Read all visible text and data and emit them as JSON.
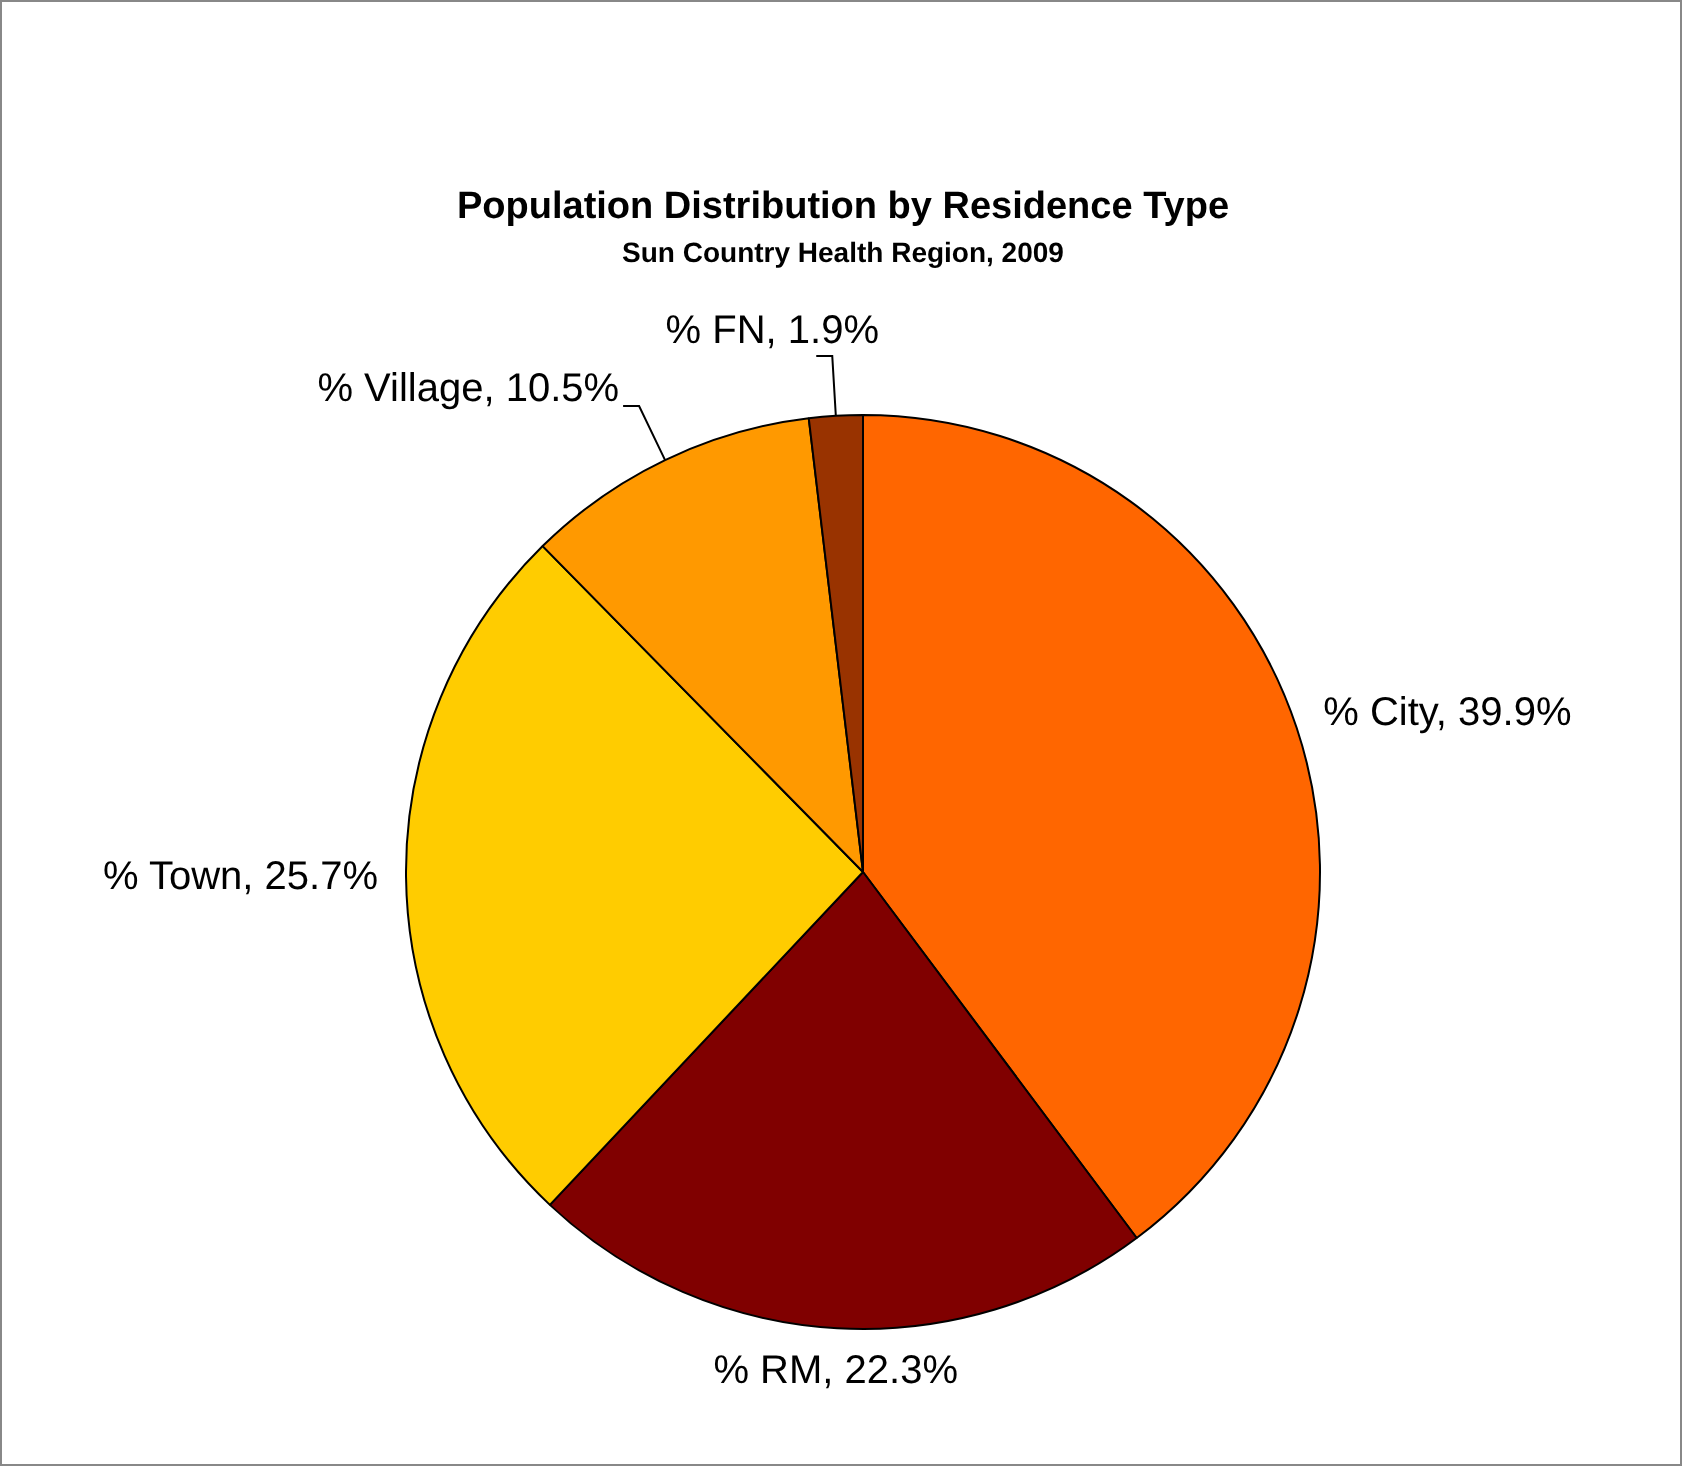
{
  "chart_data": {
    "type": "pie",
    "title": "Population Distribution by Residence Type",
    "subtitle": "Sun Country Health Region, 2009",
    "categories": [
      "% City",
      "% RM",
      "% Town",
      "% Village",
      "% FN"
    ],
    "values": [
      39.9,
      22.3,
      25.7,
      10.5,
      1.9
    ],
    "colors": [
      "#ff6600",
      "#800000",
      "#ffcc00",
      "#ff9900",
      "#993300"
    ],
    "value_labels": [
      "39.9%",
      "22.3%",
      "25.7%",
      "10.5%",
      "1.9%"
    ],
    "legend": false
  }
}
